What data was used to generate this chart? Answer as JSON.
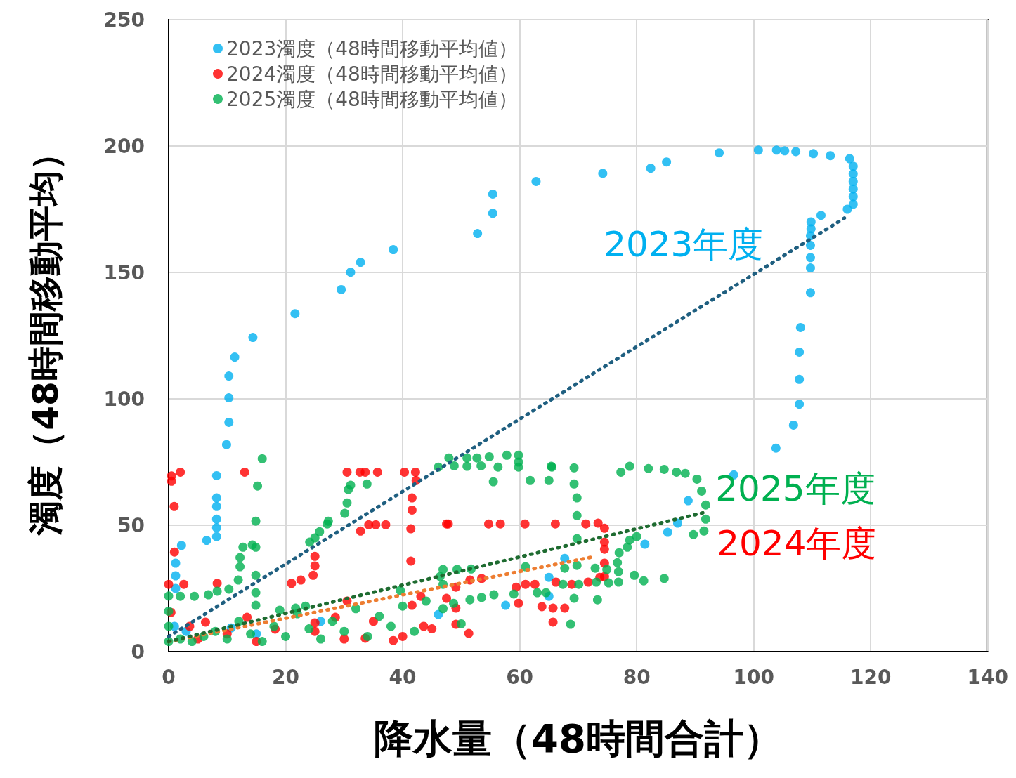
{
  "chart_data": {
    "type": "scatter",
    "xlabel": "降水量（48時間合計）",
    "ylabel": "濁度（48時間移動平均）",
    "xlim": [
      0,
      140
    ],
    "xticks": [
      0,
      20,
      40,
      60,
      80,
      100,
      120,
      140
    ],
    "ylim": [
      0,
      250
    ],
    "yticks": [
      0,
      50,
      100,
      150,
      200,
      250
    ],
    "grid": true,
    "legend": "top left",
    "marker": "circle",
    "annotations": [
      "2023年度",
      "2024年度",
      "2025年度"
    ],
    "series": [
      {
        "name": "2023濁度（48時間移動平均値）",
        "color": "#00b0f0",
        "x": [
          1.2,
          1.2,
          1.2,
          2.2,
          6.5,
          8.2,
          8.2,
          8.2,
          8.2,
          8.2,
          8.2,
          9.9,
          10.3,
          10.3,
          10.3,
          11.3,
          14.4,
          21.6,
          29.5,
          31.1,
          32.8,
          38.4,
          52.8,
          55.4,
          55.4,
          62.8,
          74.2,
          82.4,
          85.1,
          94.1,
          100.8,
          103.9,
          105.3,
          107.2,
          110.2,
          113.1,
          116.4,
          117,
          117,
          117,
          117,
          117,
          117,
          116,
          111.5,
          109.8,
          109.8,
          109.7,
          109.7,
          109.7,
          109.7,
          109.7,
          108,
          107.8,
          107.8,
          107.8,
          106.8,
          103.8,
          96.6,
          88.8,
          87,
          85.3,
          81.4,
          67.7,
          65,
          65,
          57.6,
          46.1,
          1,
          3,
          10.7,
          15,
          26
        ],
        "values": [
          25,
          30,
          35,
          42,
          44,
          69.6,
          60.8,
          57.4,
          52.4,
          49,
          45.5,
          81.9,
          90.7,
          100.4,
          109,
          116.5,
          124.3,
          133.7,
          143.2,
          150.1,
          154,
          159,
          165.4,
          173.4,
          181,
          186,
          189.2,
          191.2,
          193.7,
          197.3,
          198.4,
          198.4,
          198.1,
          197.8,
          197,
          196.2,
          195,
          192,
          189,
          186,
          183,
          180,
          177,
          175,
          172.6,
          170,
          167.3,
          164.5,
          160.7,
          155.9,
          151.8,
          142,
          128.2,
          118.5,
          107.7,
          97.9,
          89.6,
          80.5,
          69.9,
          59.7,
          50.8,
          47.2,
          42.5,
          36.9,
          29.4,
          21.9,
          18.3,
          14.7,
          10,
          8,
          9.4,
          7,
          12
        ]
      },
      {
        "name": "2024濁度（48時間移動平均値）",
        "color": "#ff0000",
        "x": [
          0.5,
          0.5,
          2,
          13,
          30.5,
          32.7,
          33.6,
          35.7,
          40.3,
          42.2,
          42.3,
          41.6,
          41.6,
          41.4,
          41.4,
          47.8,
          32.8,
          34.2,
          35.4,
          37.1,
          0.95,
          47.5,
          54.7,
          56.7,
          60.9,
          66.1,
          71.3,
          73.4,
          74.5,
          74.5,
          74.5,
          74.5,
          74.5,
          25,
          25,
          24.7,
          22.6,
          21,
          8.3,
          2.6,
          0,
          1,
          49.1,
          51.5,
          53.5,
          49.1,
          49.1,
          51.3,
          59.4,
          61,
          62.6,
          59.8,
          63.8,
          65.7,
          67.7,
          65.7,
          66.2,
          68.9,
          71.7,
          73.7,
          43.1,
          41.6,
          43.6,
          38.4,
          33.6,
          30.5,
          28.5,
          25,
          18.2,
          13.4,
          6.3,
          3.6,
          0.4,
          47.5,
          5,
          10,
          15,
          25,
          30,
          35,
          40,
          45
        ],
        "values": [
          67.4,
          69.5,
          71,
          71,
          71,
          71,
          71,
          71,
          71,
          71,
          67.7,
          60.8,
          56,
          48.6,
          35.8,
          50.5,
          47.7,
          50.2,
          50.2,
          50.2,
          57.4,
          50.5,
          50.5,
          50.5,
          50.5,
          50.5,
          50.5,
          50.8,
          48.8,
          43.3,
          40.5,
          35,
          29.7,
          37.7,
          33.9,
          30.2,
          28.3,
          27,
          27,
          26.6,
          26.6,
          39.4,
          25.5,
          28.3,
          28.9,
          17.2,
          10.8,
          7.2,
          25.5,
          26.6,
          26.6,
          19.1,
          17.8,
          17.2,
          17.2,
          11.7,
          27.5,
          26.6,
          27.5,
          29.4,
          21.9,
          18.3,
          10,
          4.4,
          5.3,
          20,
          13.6,
          11.4,
          8.9,
          13.6,
          11.7,
          10,
          15.5,
          21.1,
          5,
          7,
          4,
          8,
          5,
          12,
          6,
          9
        ]
      },
      {
        "name": "2025濁度（48時間移動平均値）",
        "color": "#00b050",
        "x": [
          0,
          0,
          0,
          0,
          16,
          15.2,
          14.9,
          14.9,
          14.3,
          12.7,
          12.2,
          12.2,
          11.9,
          10.3,
          8.3,
          6.8,
          4.4,
          2,
          14.9,
          14.9,
          14.9,
          19,
          21.7,
          23.4,
          24.1,
          25,
          25.8,
          27.1,
          27.3,
          30.1,
          30.5,
          30.7,
          31.1,
          33.9,
          46.1,
          47.9,
          51,
          51,
          52.7,
          54.8,
          57.8,
          59.8,
          59.8,
          59.8,
          65.5,
          48.8,
          53.4,
          56.3,
          55.5,
          61.8,
          65,
          65.4,
          69.3,
          69.3,
          69.8,
          69.8,
          69.8,
          69.8,
          67.7,
          61,
          77.3,
          78.8,
          82,
          84.7,
          86.8,
          88.3,
          90.3,
          91.1,
          91.8,
          91.8,
          91.5,
          89.7,
          80,
          78.8,
          78.4,
          77,
          76.7,
          76.9,
          74.9,
          72.9,
          79.6,
          81.2,
          84.7,
          76.9,
          75.2,
          73.1,
          70.1,
          67.4,
          64.5,
          63,
          59,
          55.6,
          53.5,
          51.5,
          48.7,
          69.3,
          73.3,
          68.7,
          49.3,
          51.7,
          39.6,
          46.4,
          46.9,
          46.9,
          46.9,
          2,
          4,
          6,
          8,
          10,
          12,
          14,
          16,
          18,
          20,
          22,
          24,
          26,
          28,
          30,
          32,
          34,
          36,
          38,
          40,
          42,
          44,
          50
        ],
        "values": [
          4,
          10,
          16,
          22,
          76.3,
          65.5,
          51.6,
          41.3,
          42.2,
          41.3,
          37.2,
          33.6,
          28.3,
          24.7,
          23.9,
          22.5,
          21.9,
          21.9,
          30.2,
          23.3,
          18.3,
          16.4,
          17.2,
          18,
          43.3,
          45,
          47.4,
          50.5,
          51.6,
          54.7,
          58.8,
          64.1,
          65.8,
          66.3,
          73,
          76.6,
          76.6,
          73.3,
          76.6,
          77.1,
          77.7,
          77.7,
          75,
          73,
          73,
          73.5,
          73.5,
          73,
          67.2,
          67.7,
          67.7,
          73.3,
          72.7,
          66.3,
          60.8,
          53.8,
          44.7,
          34.1,
          33,
          33.6,
          71,
          73.3,
          72.4,
          72.1,
          71,
          70.5,
          68.2,
          63.5,
          58,
          52.4,
          47.7,
          46.3,
          45.5,
          44.1,
          41.3,
          39.1,
          35.2,
          31.6,
          32.5,
          33,
          30.2,
          28,
          28.9,
          27.5,
          27.2,
          27.5,
          26.6,
          26.6,
          23.3,
          23.3,
          22.8,
          22.5,
          21.4,
          20.5,
          19.1,
          21.1,
          20.5,
          10.8,
          32.5,
          32.7,
          24.2,
          29.7,
          32.5,
          26.6,
          17,
          5,
          4,
          6,
          8,
          5,
          12,
          7,
          4,
          10,
          6,
          15,
          9,
          5,
          12,
          8,
          17,
          6,
          14,
          10,
          18,
          8,
          20,
          11
        ]
      },
      {
        "type": "line",
        "color": "#1f5f80",
        "marker": "none",
        "line_style": "dotted",
        "x": [
          0,
          115.5
        ],
        "values": [
          6,
          171.5
        ]
      },
      {
        "type": "line",
        "color": "#ed7d31",
        "marker": "none",
        "line_style": "dotted",
        "x": [
          0,
          73
        ],
        "values": [
          4,
          37.7
        ]
      },
      {
        "type": "line",
        "color": "#1e6b30",
        "marker": "none",
        "line_style": "dotted",
        "x": [
          0,
          91.5
        ],
        "values": [
          4,
          55
        ]
      }
    ]
  }
}
